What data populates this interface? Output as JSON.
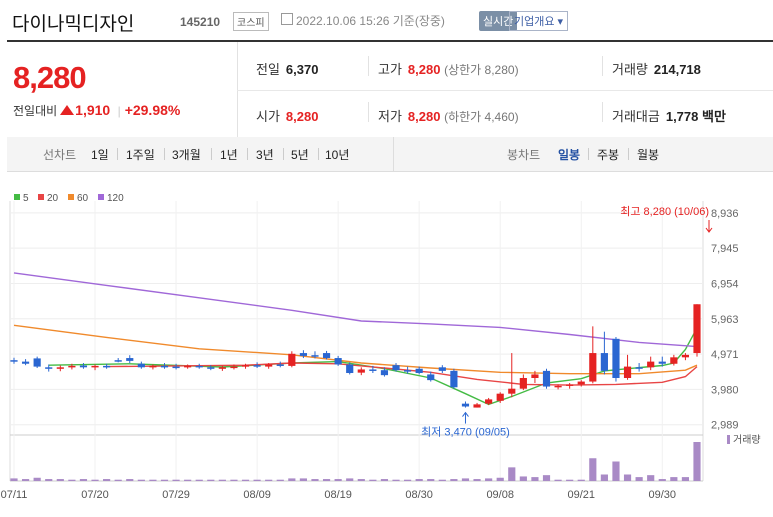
{
  "header": {
    "name": "다이나믹디자인",
    "code": "145210",
    "market": "코스피",
    "timestamp": "2022.10.06 15:26 기준(장중)",
    "realtime": "실시간",
    "company_info": "기업개요 ▾"
  },
  "quote": {
    "price": "8,280",
    "change_label": "전일대비",
    "change_value": "1,910",
    "change_pct": "+29.98%",
    "prev_close_label": "전일",
    "prev_close": "6,370",
    "open_label": "시가",
    "open": "8,280",
    "high_label": "고가",
    "high": "8,280",
    "high_limit": "(상한가 8,280)",
    "low_label": "저가",
    "low": "8,280",
    "low_limit": "(하한가 4,460)",
    "volume_label": "거래량",
    "volume": "214,718",
    "amount_label": "거래대금",
    "amount": "1,778",
    "amount_unit": "백만"
  },
  "tabs": {
    "line_label": "선차트",
    "line_items": [
      "1일",
      "1주일",
      "3개월",
      "1년",
      "3년",
      "5년",
      "10년"
    ],
    "candle_label": "봉차트",
    "candle_items": [
      "일봉",
      "주봉",
      "월봉"
    ],
    "candle_active": "일봉"
  },
  "chart_data": {
    "type": "candlestick",
    "legend": [
      {
        "name": "5",
        "color": "#44bb44"
      },
      {
        "name": "20",
        "color": "#e84545"
      },
      {
        "name": "60",
        "color": "#f08a2c"
      },
      {
        "name": "120",
        "color": "#a068d8"
      }
    ],
    "y_ticks": [
      8936,
      7945,
      6954,
      5963,
      4971,
      3980,
      2989
    ],
    "ylim": [
      2700,
      9100
    ],
    "x_ticks": [
      {
        "label": "07/11",
        "i": 0
      },
      {
        "label": "07/20",
        "i": 7
      },
      {
        "label": "07/29",
        "i": 14
      },
      {
        "label": "08/09",
        "i": 21
      },
      {
        "label": "08/19",
        "i": 28
      },
      {
        "label": "08/30",
        "i": 35
      },
      {
        "label": "09/08",
        "i": 42
      },
      {
        "label": "09/21",
        "i": 49
      },
      {
        "label": "09/30",
        "i": 56
      }
    ],
    "high_annotation": "최고 8,280 (10/06)",
    "low_annotation": "최저 3,470 (09/05)",
    "volume_label": "거래량",
    "up_color": "#e52222",
    "down_color": "#2a66d1",
    "candles": [
      {
        "o": 4800,
        "h": 4870,
        "l": 4700,
        "c": 4760,
        "v": 4
      },
      {
        "o": 4760,
        "h": 4830,
        "l": 4660,
        "c": 4700,
        "v": 3
      },
      {
        "o": 4850,
        "h": 4900,
        "l": 4580,
        "c": 4620,
        "v": 5
      },
      {
        "o": 4600,
        "h": 4680,
        "l": 4480,
        "c": 4560,
        "v": 3
      },
      {
        "o": 4560,
        "h": 4650,
        "l": 4490,
        "c": 4600,
        "v": 3
      },
      {
        "o": 4600,
        "h": 4700,
        "l": 4540,
        "c": 4640,
        "v": 2
      },
      {
        "o": 4650,
        "h": 4720,
        "l": 4560,
        "c": 4600,
        "v": 3
      },
      {
        "o": 4600,
        "h": 4680,
        "l": 4520,
        "c": 4640,
        "v": 2
      },
      {
        "o": 4640,
        "h": 4700,
        "l": 4560,
        "c": 4600,
        "v": 3
      },
      {
        "o": 4800,
        "h": 4860,
        "l": 4740,
        "c": 4780,
        "v": 2
      },
      {
        "o": 4860,
        "h": 4940,
        "l": 4720,
        "c": 4780,
        "v": 3
      },
      {
        "o": 4700,
        "h": 4760,
        "l": 4560,
        "c": 4600,
        "v": 2
      },
      {
        "o": 4600,
        "h": 4680,
        "l": 4540,
        "c": 4640,
        "v": 2
      },
      {
        "o": 4640,
        "h": 4720,
        "l": 4560,
        "c": 4620,
        "v": 2
      },
      {
        "o": 4620,
        "h": 4700,
        "l": 4540,
        "c": 4580,
        "v": 2
      },
      {
        "o": 4600,
        "h": 4680,
        "l": 4560,
        "c": 4640,
        "v": 2
      },
      {
        "o": 4640,
        "h": 4700,
        "l": 4560,
        "c": 4600,
        "v": 2
      },
      {
        "o": 4600,
        "h": 4660,
        "l": 4520,
        "c": 4560,
        "v": 2
      },
      {
        "o": 4560,
        "h": 4640,
        "l": 4500,
        "c": 4600,
        "v": 2
      },
      {
        "o": 4600,
        "h": 4680,
        "l": 4540,
        "c": 4620,
        "v": 2
      },
      {
        "o": 4620,
        "h": 4700,
        "l": 4560,
        "c": 4660,
        "v": 2
      },
      {
        "o": 4660,
        "h": 4740,
        "l": 4580,
        "c": 4620,
        "v": 2
      },
      {
        "o": 4620,
        "h": 4720,
        "l": 4560,
        "c": 4680,
        "v": 2
      },
      {
        "o": 4680,
        "h": 4760,
        "l": 4600,
        "c": 4640,
        "v": 2
      },
      {
        "o": 4640,
        "h": 5050,
        "l": 4600,
        "c": 4980,
        "v": 4
      },
      {
        "o": 5000,
        "h": 5080,
        "l": 4860,
        "c": 4920,
        "v": 4
      },
      {
        "o": 4940,
        "h": 5050,
        "l": 4850,
        "c": 4900,
        "v": 3
      },
      {
        "o": 5000,
        "h": 5060,
        "l": 4820,
        "c": 4860,
        "v": 3
      },
      {
        "o": 4860,
        "h": 4920,
        "l": 4640,
        "c": 4680,
        "v": 3
      },
      {
        "o": 4680,
        "h": 4740,
        "l": 4400,
        "c": 4440,
        "v": 4
      },
      {
        "o": 4450,
        "h": 4600,
        "l": 4380,
        "c": 4540,
        "v": 3
      },
      {
        "o": 4540,
        "h": 4640,
        "l": 4440,
        "c": 4520,
        "v": 2
      },
      {
        "o": 4520,
        "h": 4600,
        "l": 4340,
        "c": 4380,
        "v": 3
      },
      {
        "o": 4660,
        "h": 4720,
        "l": 4480,
        "c": 4520,
        "v": 2
      },
      {
        "o": 4520,
        "h": 4620,
        "l": 4420,
        "c": 4480,
        "v": 2
      },
      {
        "o": 4560,
        "h": 4620,
        "l": 4400,
        "c": 4440,
        "v": 3
      },
      {
        "o": 4400,
        "h": 4480,
        "l": 4200,
        "c": 4240,
        "v": 3
      },
      {
        "o": 4600,
        "h": 4660,
        "l": 4440,
        "c": 4500,
        "v": 2
      },
      {
        "o": 4500,
        "h": 4560,
        "l": 4000,
        "c": 4040,
        "v": 3
      },
      {
        "o": 3580,
        "h": 3640,
        "l": 3470,
        "c": 3500,
        "v": 4
      },
      {
        "o": 3470,
        "h": 3600,
        "l": 3470,
        "c": 3560,
        "v": 3
      },
      {
        "o": 3580,
        "h": 3740,
        "l": 3540,
        "c": 3700,
        "v": 4
      },
      {
        "o": 3660,
        "h": 3900,
        "l": 3600,
        "c": 3860,
        "v": 5
      },
      {
        "o": 3860,
        "h": 5000,
        "l": 3760,
        "c": 4000,
        "v": 21
      },
      {
        "o": 4000,
        "h": 4400,
        "l": 3960,
        "c": 4300,
        "v": 7
      },
      {
        "o": 4300,
        "h": 4500,
        "l": 4160,
        "c": 4400,
        "v": 6
      },
      {
        "o": 4500,
        "h": 4560,
        "l": 4000,
        "c": 4060,
        "v": 9
      },
      {
        "o": 4060,
        "h": 4120,
        "l": 3980,
        "c": 4080,
        "v": 2
      },
      {
        "o": 4080,
        "h": 4160,
        "l": 4000,
        "c": 4120,
        "v": 2
      },
      {
        "o": 4120,
        "h": 4240,
        "l": 4060,
        "c": 4200,
        "v": 2
      },
      {
        "o": 4200,
        "h": 5750,
        "l": 4150,
        "c": 5000,
        "v": 35
      },
      {
        "o": 5000,
        "h": 5600,
        "l": 4400,
        "c": 4500,
        "v": 10
      },
      {
        "o": 5400,
        "h": 5450,
        "l": 4200,
        "c": 4300,
        "v": 30
      },
      {
        "o": 4300,
        "h": 4950,
        "l": 4250,
        "c": 4620,
        "v": 10
      },
      {
        "o": 4600,
        "h": 4720,
        "l": 4480,
        "c": 4560,
        "v": 6
      },
      {
        "o": 4600,
        "h": 4900,
        "l": 4520,
        "c": 4760,
        "v": 9
      },
      {
        "o": 4760,
        "h": 4900,
        "l": 4620,
        "c": 4700,
        "v": 3
      },
      {
        "o": 4700,
        "h": 4950,
        "l": 4650,
        "c": 4880,
        "v": 6
      },
      {
        "o": 4880,
        "h": 5000,
        "l": 4800,
        "c": 4950,
        "v": 6
      },
      {
        "o": 5000,
        "h": 6370,
        "l": 4900,
        "c": 6370,
        "v": 60
      }
    ],
    "ma": {
      "5": [
        [
          3,
          4660
        ],
        [
          10,
          4700
        ],
        [
          18,
          4610
        ],
        [
          24,
          4720
        ],
        [
          28,
          4760
        ],
        [
          32,
          4560
        ],
        [
          36,
          4300
        ],
        [
          39,
          3860
        ],
        [
          41,
          3560
        ],
        [
          43,
          3780
        ],
        [
          46,
          4160
        ],
        [
          49,
          4280
        ],
        [
          51,
          4500
        ],
        [
          53,
          4560
        ],
        [
          56,
          4650
        ],
        [
          57,
          4720
        ],
        [
          58,
          5100
        ],
        [
          59,
          5700
        ]
      ],
      "20": [
        [
          8,
          4620
        ],
        [
          20,
          4660
        ],
        [
          24,
          4720
        ],
        [
          28,
          4700
        ],
        [
          32,
          4580
        ],
        [
          36,
          4460
        ],
        [
          40,
          4260
        ],
        [
          44,
          4120
        ],
        [
          48,
          4100
        ],
        [
          52,
          4120
        ],
        [
          56,
          4180
        ],
        [
          58,
          4340
        ],
        [
          59,
          4620
        ]
      ],
      "60": [
        [
          0,
          5780
        ],
        [
          8,
          5440
        ],
        [
          16,
          5120
        ],
        [
          24,
          4950
        ],
        [
          30,
          4720
        ],
        [
          36,
          4580
        ],
        [
          42,
          4460
        ],
        [
          48,
          4420
        ],
        [
          54,
          4420
        ],
        [
          58,
          4520
        ],
        [
          59,
          4660
        ]
      ],
      "120": [
        [
          0,
          7250
        ],
        [
          8,
          6900
        ],
        [
          16,
          6550
        ],
        [
          24,
          6200
        ],
        [
          30,
          5900
        ],
        [
          36,
          5820
        ],
        [
          42,
          5720
        ],
        [
          48,
          5520
        ],
        [
          54,
          5300
        ],
        [
          59,
          5180
        ]
      ]
    }
  }
}
